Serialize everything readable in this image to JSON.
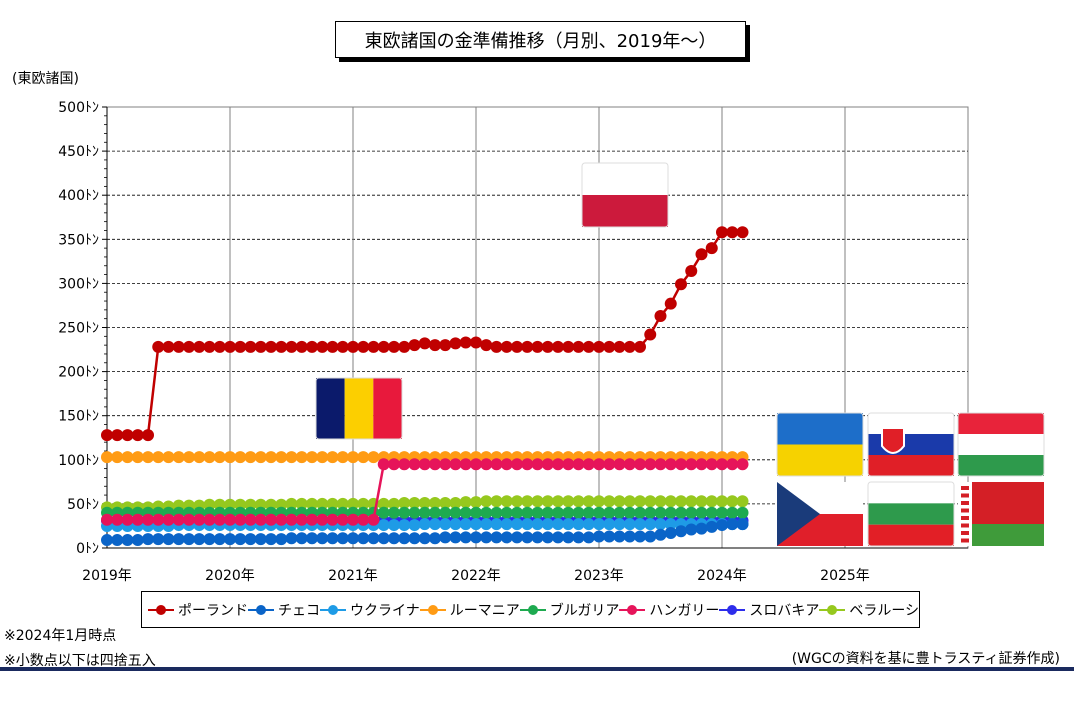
{
  "title": "東欧諸国の金準備推移（月別、2019年～）",
  "y_axis_unit": "(東欧諸国)",
  "notes": [
    "※2024年1月時点",
    "※小数点以下は四捨五入"
  ],
  "source": "(WGCの資料を基に豊トラスティ証券作成)",
  "flags": [
    "poland-flag",
    "romania-flag",
    "ukraine-flag",
    "slovakia-flag",
    "hungary-flag",
    "czech-flag",
    "bulgaria-flag",
    "belarus-flag"
  ],
  "chart_data": {
    "type": "line",
    "title": "東欧諸国の金準備推移（月別、2019年～）",
    "ylabel": "(東欧諸国)",
    "ylim": [
      0,
      500
    ],
    "y_ticks": [
      "0ﾄﾝ",
      "50ﾄﾝ",
      "100ﾄﾝ",
      "150ﾄﾝ",
      "200ﾄﾝ",
      "250ﾄﾝ",
      "300ﾄﾝ",
      "350ﾄﾝ",
      "400ﾄﾝ",
      "450ﾄﾝ",
      "500ﾄﾝ"
    ],
    "x_ticks": [
      "2019年",
      "2020年",
      "2021年",
      "2022年",
      "2023年",
      "2024年",
      "2025年"
    ],
    "x_start": "2019-01",
    "x_end": "2024-01",
    "grid": true,
    "legend": "bottom",
    "series": [
      {
        "name": "ポーランド",
        "color": "#c00000",
        "key": "poland",
        "values": [
          128,
          128,
          128,
          128,
          128,
          228,
          228,
          228,
          228,
          228,
          228,
          228,
          228,
          228,
          228,
          228,
          228,
          228,
          228,
          228,
          228,
          228,
          228,
          228,
          228,
          228,
          228,
          228,
          228,
          228,
          230,
          232,
          230,
          230,
          232,
          233,
          233,
          230,
          228,
          228,
          228,
          228,
          228,
          228,
          228,
          228,
          228,
          228,
          228,
          228,
          228,
          228,
          228,
          242,
          263,
          277,
          299,
          314,
          333,
          340,
          358,
          358,
          358
        ]
      },
      {
        "name": "チェコ",
        "color": "#0a64c8",
        "key": "czech",
        "values": [
          9,
          9,
          9,
          9,
          10,
          10,
          10,
          10,
          10,
          10,
          10,
          10,
          10,
          10,
          10,
          10,
          10,
          10,
          11,
          11,
          11,
          11,
          11,
          11,
          11,
          11,
          11,
          11,
          11,
          11,
          11,
          11,
          11,
          12,
          12,
          12,
          12,
          12,
          12,
          12,
          12,
          12,
          12,
          12,
          12,
          12,
          12,
          12,
          13,
          13,
          13,
          13,
          13,
          13,
          15,
          17,
          19,
          21,
          22,
          24,
          26,
          27,
          27
        ]
      },
      {
        "name": "ウクライナ",
        "color": "#1e9be6",
        "key": "ukraine",
        "values": [
          25,
          25,
          25,
          25,
          25,
          25,
          25,
          26,
          26,
          26,
          26,
          26,
          26,
          26,
          26,
          26,
          26,
          26,
          26,
          26,
          26,
          26,
          26,
          26,
          26,
          26,
          26,
          26,
          26,
          26,
          26,
          27,
          27,
          27,
          27,
          27,
          27,
          27,
          27,
          27,
          27,
          27,
          27,
          27,
          27,
          27,
          27,
          27,
          27,
          27,
          27,
          27,
          27,
          27,
          27,
          27,
          27,
          27,
          27,
          27,
          27,
          27,
          27
        ]
      },
      {
        "name": "ルーマニア",
        "color": "#ff9b14",
        "key": "romania",
        "values": [
          103,
          103,
          103,
          103,
          103,
          103,
          103,
          103,
          103,
          103,
          103,
          103,
          103,
          103,
          103,
          103,
          103,
          103,
          103,
          103,
          103,
          103,
          103,
          103,
          103,
          103,
          103,
          103,
          103,
          103,
          103,
          103,
          103,
          103,
          103,
          103,
          103,
          103,
          103,
          103,
          103,
          103,
          103,
          103,
          103,
          103,
          103,
          103,
          103,
          103,
          103,
          103,
          103,
          103,
          103,
          103,
          103,
          103,
          103,
          103,
          103,
          103,
          103
        ]
      },
      {
        "name": "ブルガリア",
        "color": "#1eaa50",
        "key": "bulgaria",
        "values": [
          40,
          40,
          40,
          40,
          40,
          40,
          40,
          40,
          40,
          40,
          40,
          40,
          40,
          40,
          40,
          40,
          40,
          40,
          40,
          40,
          40,
          40,
          40,
          40,
          40,
          40,
          40,
          40,
          40,
          40,
          40,
          40,
          40,
          40,
          40,
          40,
          40,
          40,
          40,
          40,
          40,
          40,
          40,
          40,
          40,
          40,
          40,
          40,
          40,
          40,
          40,
          40,
          40,
          40,
          40,
          40,
          40,
          40,
          40,
          40,
          40,
          40,
          40
        ]
      },
      {
        "name": "ハンガリー",
        "color": "#e6145a",
        "key": "hungary",
        "values": [
          32,
          32,
          32,
          32,
          32,
          32,
          32,
          32,
          32,
          32,
          32,
          32,
          32,
          32,
          32,
          32,
          32,
          32,
          32,
          32,
          32,
          32,
          32,
          32,
          32,
          32,
          32,
          95,
          95,
          95,
          95,
          95,
          95,
          95,
          95,
          95,
          95,
          95,
          95,
          95,
          95,
          95,
          95,
          95,
          95,
          95,
          95,
          95,
          95,
          95,
          95,
          95,
          95,
          95,
          95,
          95,
          95,
          95,
          95,
          95,
          95,
          95,
          95
        ]
      },
      {
        "name": "スロバキア",
        "color": "#2d2deb",
        "key": "slovakia",
        "values": [
          31,
          31,
          31,
          31,
          31,
          31,
          31,
          31,
          31,
          31,
          31,
          31,
          31,
          31,
          31,
          31,
          31,
          31,
          31,
          31,
          31,
          31,
          31,
          31,
          31,
          31,
          31,
          31,
          31,
          31,
          31,
          31,
          31,
          31,
          31,
          31,
          31,
          31,
          31,
          31,
          31,
          31,
          31,
          31,
          31,
          31,
          31,
          31,
          31,
          31,
          31,
          31,
          31,
          31,
          31,
          31,
          31,
          31,
          31,
          31,
          31,
          31,
          31
        ]
      },
      {
        "name": "ベラルーシ",
        "color": "#96c81e",
        "key": "belarus",
        "values": [
          46,
          46,
          46,
          46,
          46,
          47,
          47,
          48,
          48,
          48,
          49,
          49,
          49,
          49,
          49,
          49,
          49,
          49,
          50,
          50,
          50,
          50,
          50,
          50,
          50,
          50,
          50,
          50,
          50,
          51,
          51,
          51,
          51,
          51,
          51,
          52,
          52,
          53,
          53,
          53,
          53,
          53,
          53,
          53,
          53,
          53,
          53,
          53,
          53,
          53,
          53,
          53,
          53,
          53,
          53,
          53,
          53,
          53,
          53,
          53,
          53,
          53,
          53
        ]
      }
    ]
  }
}
